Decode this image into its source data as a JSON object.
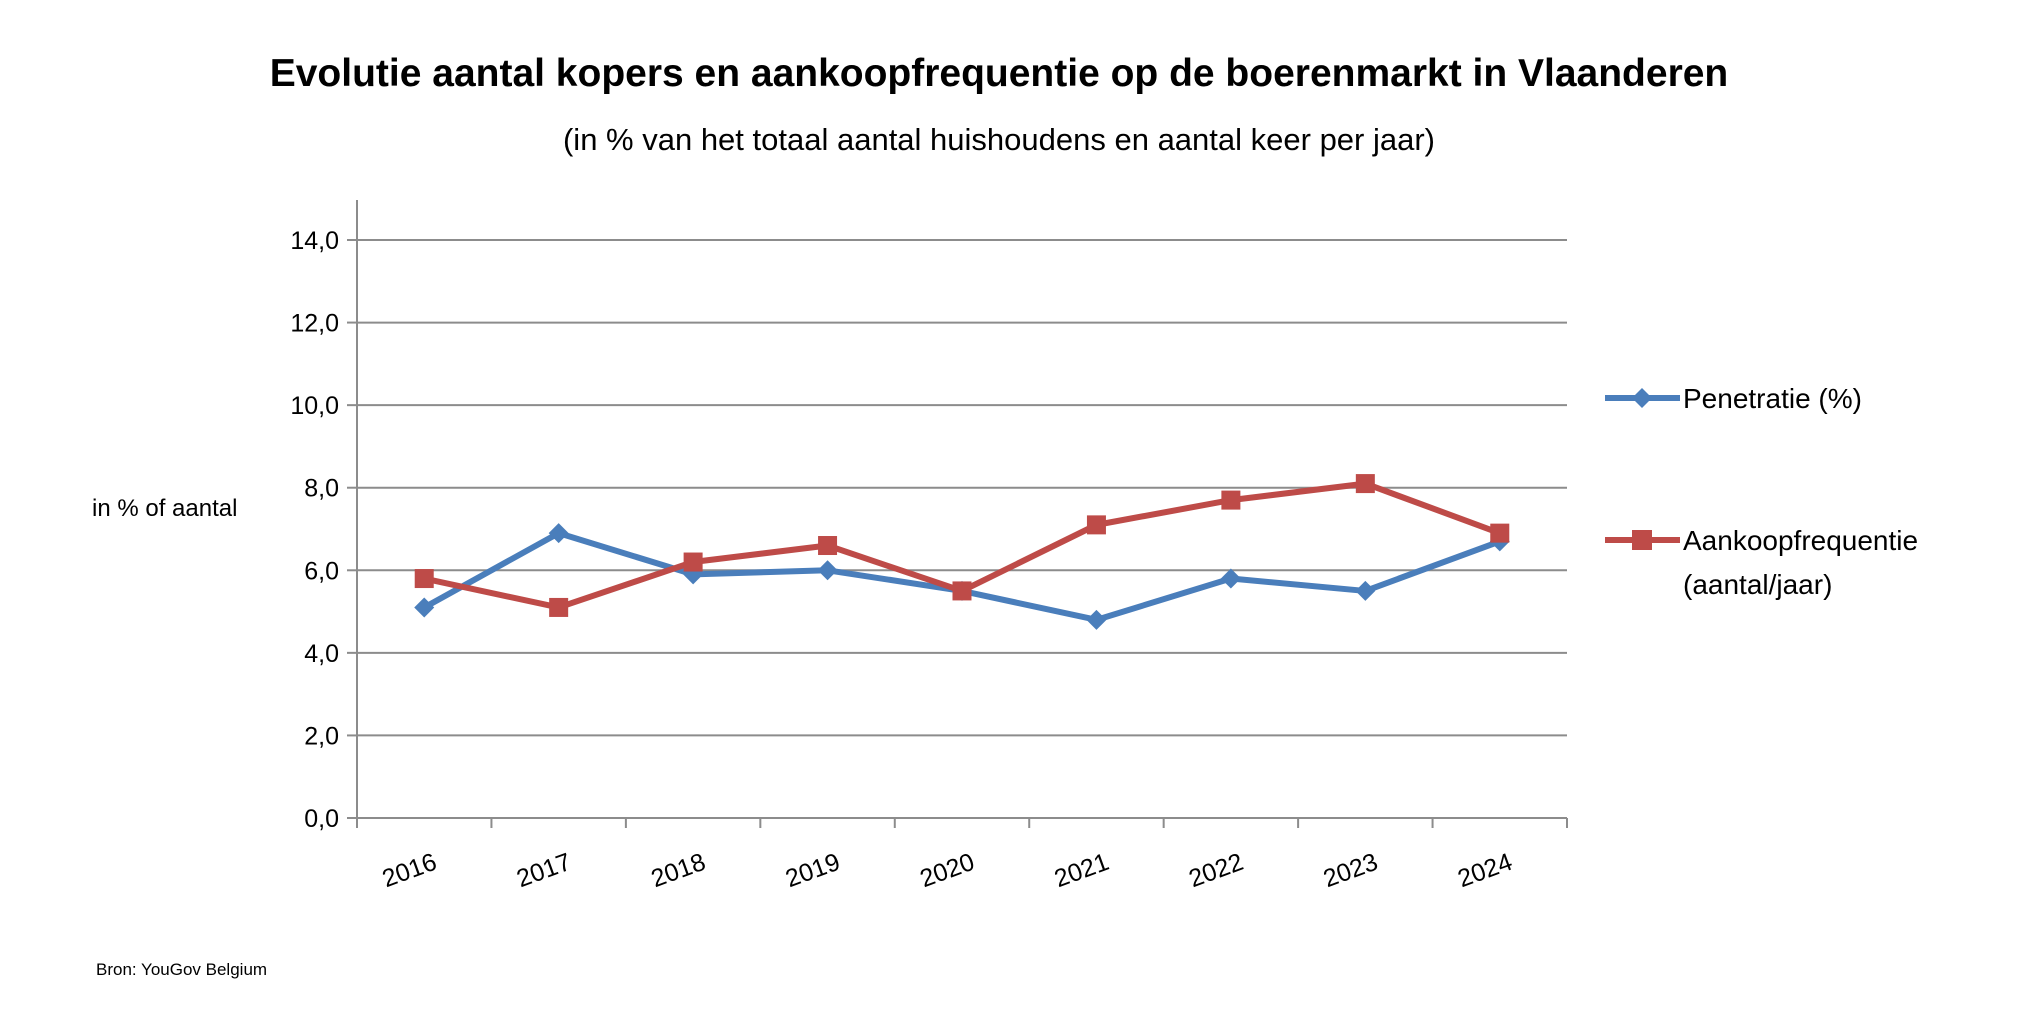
{
  "title": "Evolutie aantal kopers en aankoopfrequentie op de boerenmarkt in Vlaanderen",
  "subtitle": "(in % van het totaal aantal huishoudens en aantal keer per jaar)",
  "source": "Bron: YouGov Belgium",
  "chart_data": {
    "type": "line",
    "ylabel": "in % of aantal",
    "ylim": [
      0,
      14
    ],
    "yticks": [
      "0,0",
      "2,0",
      "4,0",
      "6,0",
      "8,0",
      "10,0",
      "12,0",
      "14,0"
    ],
    "grid": true,
    "legend_position": "right",
    "categories": [
      "2016",
      "2017",
      "2018",
      "2019",
      "2020",
      "2021",
      "2022",
      "2023",
      "2024"
    ],
    "series": [
      {
        "name": "Penetratie (%)",
        "color": "#4A7EBB",
        "marker": "diamond",
        "values": [
          5.1,
          6.9,
          5.9,
          6.0,
          5.5,
          4.8,
          5.8,
          5.5,
          6.7
        ]
      },
      {
        "name": "Aankoopfrequentie (aantal/jaar)",
        "name_lines": [
          "Aankoopfrequentie",
          "(aantal/jaar)"
        ],
        "color": "#BE4B48",
        "marker": "square",
        "values": [
          5.8,
          5.1,
          6.2,
          6.6,
          5.5,
          7.1,
          7.7,
          8.1,
          6.9
        ]
      }
    ]
  }
}
